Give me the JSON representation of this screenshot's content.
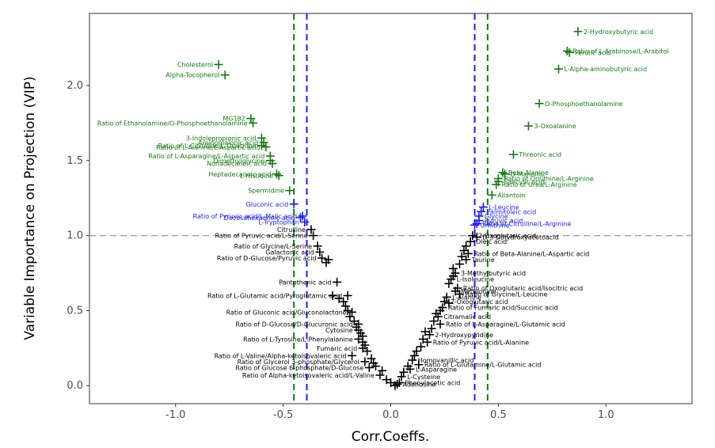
{
  "chart_data": {
    "type": "scatter",
    "title": "",
    "xlabel": "Corr.Coeffs.",
    "ylabel": "Variable Importance on Projection (VIP)",
    "xlim": [
      -1.4,
      1.4
    ],
    "ylim": [
      -0.12,
      2.48
    ],
    "x_ticks": [
      -1.0,
      -0.5,
      0.0,
      0.5,
      1.0
    ],
    "x_tick_labels": [
      "-1.0",
      "-0.5",
      "0.0",
      "0.5",
      "1.0"
    ],
    "y_ticks": [
      0.0,
      0.5,
      1.0,
      1.5,
      2.0
    ],
    "y_tick_labels": [
      "0.0",
      "0.5",
      "1.0",
      "1.5",
      "2.0"
    ],
    "grid": false,
    "legend": "none",
    "colors": {
      "green": "#117a11",
      "blue": "#1a1aff",
      "black": "#000000",
      "hline": "#a6a6a6"
    },
    "reference_lines": [
      {
        "axis": "y",
        "value": 1.0,
        "style": "dashed",
        "color": "#a6a6a6"
      },
      {
        "axis": "x",
        "value": -0.45,
        "style": "dashed",
        "color": "#117a11"
      },
      {
        "axis": "x",
        "value": 0.45,
        "style": "dashed",
        "color": "#117a11"
      },
      {
        "axis": "x",
        "value": -0.39,
        "style": "dashed",
        "color": "#1a1aff"
      },
      {
        "axis": "x",
        "value": 0.39,
        "style": "dashed",
        "color": "#1a1aff"
      }
    ],
    "labeled_points": [
      {
        "x": 0.87,
        "y": 2.36,
        "label": "2-Hydroxybutyric acid",
        "color": "green",
        "side": "right"
      },
      {
        "x": 0.82,
        "y": 2.23,
        "label": "Ratio of L-Arabinose/L-Arabitol",
        "color": "green",
        "side": "right"
      },
      {
        "x": 0.83,
        "y": 2.22,
        "label": "Ferulic acid",
        "color": "green",
        "side": "right"
      },
      {
        "x": 0.78,
        "y": 2.11,
        "label": "L-Alpha-aminobutyric acid",
        "color": "green",
        "side": "right"
      },
      {
        "x": 0.69,
        "y": 1.88,
        "label": "O-Phosphoethanolamine",
        "color": "green",
        "side": "right"
      },
      {
        "x": 0.64,
        "y": 1.73,
        "label": "3-Oxoalanine",
        "color": "green",
        "side": "right"
      },
      {
        "x": 0.57,
        "y": 1.54,
        "label": "Threonic acid",
        "color": "green",
        "side": "right"
      },
      {
        "x": 0.52,
        "y": 1.42,
        "label": "Beta-Alanine",
        "color": "green",
        "side": "right"
      },
      {
        "x": 0.53,
        "y": 1.41,
        "label": "D-Mannitol",
        "color": "green",
        "side": "right"
      },
      {
        "x": 0.5,
        "y": 1.38,
        "label": "Ratio of Ornithine/L-Arginine",
        "color": "green",
        "side": "right"
      },
      {
        "x": 0.5,
        "y": 1.36,
        "label": "Salicylic acid",
        "color": "green",
        "side": "right"
      },
      {
        "x": 0.49,
        "y": 1.34,
        "label": "Ratio of Urea/L-Arginine",
        "color": "green",
        "side": "right"
      },
      {
        "x": 0.47,
        "y": 1.27,
        "label": "Allantoin",
        "color": "green",
        "side": "right"
      },
      {
        "x": 0.43,
        "y": 1.19,
        "label": "L-Leucine",
        "color": "blue",
        "side": "right"
      },
      {
        "x": 0.42,
        "y": 1.16,
        "label": "Palmitoleic acid",
        "color": "blue",
        "side": "right"
      },
      {
        "x": 0.41,
        "y": 1.13,
        "label": "Glycine",
        "color": "blue",
        "side": "right"
      },
      {
        "x": 0.41,
        "y": 1.1,
        "label": "Pyruvic acid",
        "color": "blue",
        "side": "right"
      },
      {
        "x": 0.4,
        "y": 1.08,
        "label": "Ratio of Citrulline/L-Arginine",
        "color": "blue",
        "side": "right"
      },
      {
        "x": 0.39,
        "y": 1.07,
        "label": "Ornithine",
        "color": "blue",
        "side": "right"
      },
      {
        "x": -0.8,
        "y": 2.14,
        "label": "Cholesterol",
        "color": "green",
        "side": "left"
      },
      {
        "x": -0.77,
        "y": 2.07,
        "label": "Alpha-Tocopherol",
        "color": "green",
        "side": "left"
      },
      {
        "x": -0.65,
        "y": 1.78,
        "label": "MG182",
        "color": "green",
        "side": "left"
      },
      {
        "x": -0.64,
        "y": 1.75,
        "label": "Ratio of Ethanolamine/O-Phosphoethanolamine",
        "color": "green",
        "side": "left"
      },
      {
        "x": -0.6,
        "y": 1.65,
        "label": "3-Indolepropionic acid",
        "color": "green",
        "side": "left"
      },
      {
        "x": -0.59,
        "y": 1.62,
        "label": "Aminomalonic acid",
        "color": "green",
        "side": "left"
      },
      {
        "x": -0.6,
        "y": 1.6,
        "label": "Ratio of L-Citrulline/L-Ornithine",
        "color": "green",
        "side": "left"
      },
      {
        "x": -0.58,
        "y": 1.59,
        "label": "Ratio of L-Alanine/L-Aspartic acid",
        "color": "green",
        "side": "left"
      },
      {
        "x": -0.56,
        "y": 1.53,
        "label": "Ratio of L-Asparagine/L-Aspartic acid",
        "color": "green",
        "side": "left"
      },
      {
        "x": -0.56,
        "y": 1.5,
        "label": "Dimethylglycine",
        "color": "green",
        "side": "left"
      },
      {
        "x": -0.55,
        "y": 1.48,
        "label": "Nonadecanoic acid",
        "color": "green",
        "side": "left"
      },
      {
        "x": -0.53,
        "y": 1.41,
        "label": "Heptadecanoic acid",
        "color": "green",
        "side": "left"
      },
      {
        "x": -0.52,
        "y": 1.4,
        "label": "L-Histidine",
        "color": "green",
        "side": "left"
      },
      {
        "x": -0.47,
        "y": 1.3,
        "label": "Spermidine",
        "color": "green",
        "side": "left"
      },
      {
        "x": -0.45,
        "y": 1.21,
        "label": "Gluconic acid",
        "color": "blue",
        "side": "left"
      },
      {
        "x": -0.41,
        "y": 1.13,
        "label": "Ratio of Pyruvic acid/L-Malic acid",
        "color": "blue",
        "side": "left"
      },
      {
        "x": -0.42,
        "y": 1.12,
        "label": "Docosahexaenoic acid",
        "color": "blue",
        "side": "left"
      },
      {
        "x": -0.4,
        "y": 1.09,
        "label": "L-Tryptophan",
        "color": "blue",
        "side": "left"
      },
      {
        "x": -0.37,
        "y": 1.04,
        "label": "Citrulline",
        "color": "black",
        "side": "left"
      },
      {
        "x": -0.36,
        "y": 1.0,
        "label": "Ratio of Pyruvic acid/L-Serine",
        "color": "black",
        "side": "left"
      },
      {
        "x": 0.38,
        "y": 1.0,
        "label": "2-Oxoglutaric acid",
        "color": "black",
        "side": "right"
      },
      {
        "x": 0.4,
        "y": 0.99,
        "label": "D-3-Dihydroxyacetoacid",
        "color": "black",
        "side": "right"
      },
      {
        "x": 0.37,
        "y": 0.96,
        "label": "Oleic acid",
        "color": "black",
        "side": "right"
      },
      {
        "x": -0.34,
        "y": 0.93,
        "label": "Ratio of Glycine/L-Serine",
        "color": "black",
        "side": "left"
      },
      {
        "x": -0.33,
        "y": 0.89,
        "label": "Galactonic acid",
        "color": "black",
        "side": "left"
      },
      {
        "x": -0.32,
        "y": 0.85,
        "label": "Ratio of D-Glucose/Pyruvic acid",
        "color": "black",
        "side": "left"
      },
      {
        "x": 0.36,
        "y": 0.88,
        "label": "Ratio of Beta-Alanine/L-Aspartic acid",
        "color": "black",
        "side": "right"
      },
      {
        "x": 0.35,
        "y": 0.84,
        "label": "Taurine",
        "color": "black",
        "side": "right"
      },
      {
        "x": 0.3,
        "y": 0.75,
        "label": "3-Methylbutyric acid",
        "color": "black",
        "side": "right"
      },
      {
        "x": 0.28,
        "y": 0.71,
        "label": "L-Isoleucine",
        "color": "black",
        "side": "right"
      },
      {
        "x": -0.25,
        "y": 0.69,
        "label": "Pantothenic acid",
        "color": "black",
        "side": "left"
      },
      {
        "x": 0.31,
        "y": 0.65,
        "label": "Ratio of Oxoglutaric acid/Isocitric acid",
        "color": "black",
        "side": "right"
      },
      {
        "x": 0.3,
        "y": 0.63,
        "label": "Methionine",
        "color": "black",
        "side": "right"
      },
      {
        "x": 0.32,
        "y": 0.61,
        "label": "Ratio of Glycine/L-Leucine",
        "color": "black",
        "side": "right"
      },
      {
        "x": 0.26,
        "y": 0.59,
        "label": "L-Alanine",
        "color": "black",
        "side": "right"
      },
      {
        "x": -0.2,
        "y": 0.6,
        "label": "Ratio of L-Glutamic acid/Pyroglutamic acid",
        "color": "black",
        "side": "left"
      },
      {
        "x": 0.25,
        "y": 0.56,
        "label": "2-Oxoglutaric acid",
        "color": "black",
        "side": "right"
      },
      {
        "x": 0.24,
        "y": 0.52,
        "label": "Ratio of Fumaric acid/Succinic acid",
        "color": "black",
        "side": "right"
      },
      {
        "x": -0.18,
        "y": 0.49,
        "label": "Ratio of Gluconic acid/Gluconolactone",
        "color": "black",
        "side": "left"
      },
      {
        "x": 0.22,
        "y": 0.46,
        "label": "Citramalic acid",
        "color": "black",
        "side": "right"
      },
      {
        "x": -0.15,
        "y": 0.41,
        "label": "Ratio of D-Glucose/D-Glucuronic acid",
        "color": "black",
        "side": "left"
      },
      {
        "x": 0.23,
        "y": 0.41,
        "label": "Ratio of L-Asparagine/L-Glutamic acid",
        "color": "black",
        "side": "right"
      },
      {
        "x": -0.15,
        "y": 0.37,
        "label": "Cytosine",
        "color": "black",
        "side": "left"
      },
      {
        "x": -0.15,
        "y": 0.31,
        "label": "Ratio of L-Tyrosine/L-Phenylalanine",
        "color": "black",
        "side": "left"
      },
      {
        "x": 0.18,
        "y": 0.34,
        "label": "2-Hydroxypyridine",
        "color": "black",
        "side": "right"
      },
      {
        "x": 0.17,
        "y": 0.29,
        "label": "Ratio of Pyruvic acid/L-Alanine",
        "color": "black",
        "side": "right"
      },
      {
        "x": -0.13,
        "y": 0.25,
        "label": "Fumaric acid",
        "color": "black",
        "side": "left"
      },
      {
        "x": -0.18,
        "y": 0.2,
        "label": "Ratio of L-Valine/Alpha-ketoisovaleric acid",
        "color": "black",
        "side": "left"
      },
      {
        "x": -0.12,
        "y": 0.16,
        "label": "Ratio of Glycerol 3-phosphate/Glycerol",
        "color": "black",
        "side": "left"
      },
      {
        "x": 0.1,
        "y": 0.17,
        "label": "Homovanillic acid",
        "color": "black",
        "side": "right"
      },
      {
        "x": 0.13,
        "y": 0.14,
        "label": "Ratio of L-Glutamine/L-Glutamic acid",
        "color": "black",
        "side": "right"
      },
      {
        "x": 0.09,
        "y": 0.11,
        "label": "L-Asparagine",
        "color": "black",
        "side": "right"
      },
      {
        "x": -0.1,
        "y": 0.12,
        "label": "Ratio of Glucose 6-phosphate/D-Glucose",
        "color": "black",
        "side": "left"
      },
      {
        "x": -0.05,
        "y": 0.07,
        "label": "Ratio of Alpha-ketoisovaleric acid/L-Valine",
        "color": "black",
        "side": "left"
      },
      {
        "x": 0.05,
        "y": 0.06,
        "label": "L-Cysteine",
        "color": "black",
        "side": "right"
      },
      {
        "x": 0.04,
        "y": 0.02,
        "label": "Phenylacetic acid",
        "color": "black",
        "side": "right"
      },
      {
        "x": 0.03,
        "y": 0.01,
        "label": "Adenosine",
        "color": "black",
        "side": "right"
      }
    ],
    "unlabeled_points": [
      {
        "x": -0.3,
        "y": 0.82
      },
      {
        "x": -0.29,
        "y": 0.84
      },
      {
        "x": -0.27,
        "y": 0.6
      },
      {
        "x": -0.24,
        "y": 0.58
      },
      {
        "x": -0.22,
        "y": 0.56
      },
      {
        "x": -0.21,
        "y": 0.53
      },
      {
        "x": -0.2,
        "y": 0.5
      },
      {
        "x": -0.19,
        "y": 0.46
      },
      {
        "x": -0.17,
        "y": 0.43
      },
      {
        "x": -0.16,
        "y": 0.39
      },
      {
        "x": -0.14,
        "y": 0.35
      },
      {
        "x": -0.13,
        "y": 0.33
      },
      {
        "x": -0.13,
        "y": 0.29
      },
      {
        "x": -0.12,
        "y": 0.27
      },
      {
        "x": -0.11,
        "y": 0.23
      },
      {
        "x": -0.09,
        "y": 0.18
      },
      {
        "x": -0.08,
        "y": 0.15
      },
      {
        "x": -0.07,
        "y": 0.13
      },
      {
        "x": -0.04,
        "y": 0.1
      },
      {
        "x": -0.02,
        "y": 0.04
      },
      {
        "x": 0.0,
        "y": 0.02
      },
      {
        "x": 0.02,
        "y": 0.0
      },
      {
        "x": 0.06,
        "y": 0.09
      },
      {
        "x": 0.08,
        "y": 0.13
      },
      {
        "x": 0.11,
        "y": 0.2
      },
      {
        "x": 0.12,
        "y": 0.23
      },
      {
        "x": 0.14,
        "y": 0.26
      },
      {
        "x": 0.15,
        "y": 0.31
      },
      {
        "x": 0.16,
        "y": 0.36
      },
      {
        "x": 0.19,
        "y": 0.38
      },
      {
        "x": 0.2,
        "y": 0.43
      },
      {
        "x": 0.21,
        "y": 0.48
      },
      {
        "x": 0.23,
        "y": 0.5
      },
      {
        "x": 0.27,
        "y": 0.55
      },
      {
        "x": 0.27,
        "y": 0.68
      },
      {
        "x": 0.29,
        "y": 0.73
      },
      {
        "x": 0.29,
        "y": 0.78
      },
      {
        "x": 0.32,
        "y": 0.81
      },
      {
        "x": 0.33,
        "y": 0.86
      },
      {
        "x": 0.34,
        "y": 0.9
      },
      {
        "x": 0.35,
        "y": 0.93
      }
    ]
  }
}
